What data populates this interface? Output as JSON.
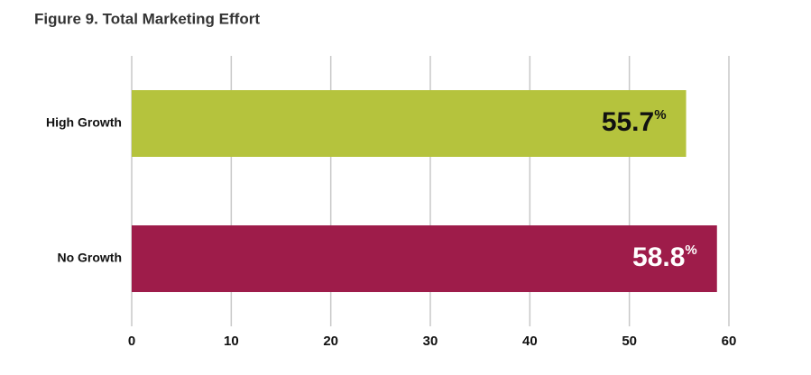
{
  "chart_data": {
    "type": "bar",
    "orientation": "horizontal",
    "title": "Figure 9. Total Marketing Effort",
    "categories": [
      "High Growth",
      "No Growth"
    ],
    "values": [
      55.7,
      58.8
    ],
    "value_labels": [
      "55.7%",
      "58.8%"
    ],
    "colors": [
      "#b5c33d",
      "#9e1c4a"
    ],
    "value_label_colors": [
      "#111111",
      "#ffffff"
    ],
    "xlim": [
      0,
      60
    ],
    "xticks": [
      0,
      10,
      20,
      30,
      40,
      50,
      60
    ],
    "grid": true
  }
}
